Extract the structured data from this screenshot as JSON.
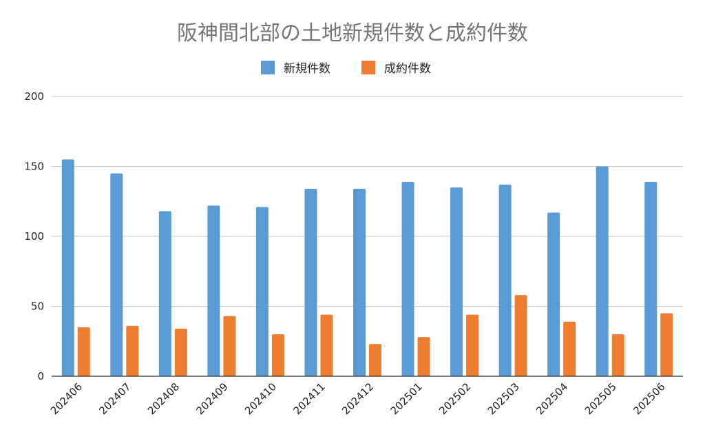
{
  "chart_data": {
    "type": "bar",
    "title": "阪神間北部の土地新規件数と成約件数",
    "categories": [
      "202406",
      "202407",
      "202408",
      "202409",
      "202410",
      "202411",
      "202412",
      "202501",
      "202502",
      "202503",
      "202504",
      "202505",
      "202506"
    ],
    "series": [
      {
        "name": "新規件数",
        "color": "#5b9bd5",
        "values": [
          155,
          145,
          118,
          122,
          121,
          134,
          134,
          139,
          135,
          137,
          117,
          150,
          139
        ]
      },
      {
        "name": "成約件数",
        "color": "#ed7d31",
        "values": [
          35,
          36,
          34,
          43,
          30,
          44,
          23,
          28,
          44,
          58,
          39,
          30,
          45
        ]
      }
    ],
    "ylim": [
      0,
      200
    ],
    "yticks": [
      0,
      50,
      100,
      150,
      200
    ],
    "grid": true,
    "legend_position": "top-center",
    "xlabel": "",
    "ylabel": ""
  }
}
